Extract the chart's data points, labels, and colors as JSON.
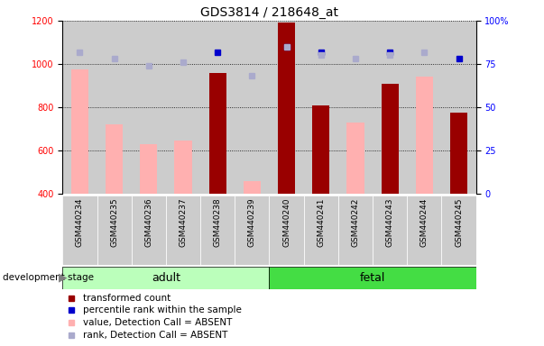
{
  "title": "GDS3814 / 218648_at",
  "samples": [
    "GSM440234",
    "GSM440235",
    "GSM440236",
    "GSM440237",
    "GSM440238",
    "GSM440239",
    "GSM440240",
    "GSM440241",
    "GSM440242",
    "GSM440243",
    "GSM440244",
    "GSM440245"
  ],
  "adult_count": 6,
  "fetal_count": 6,
  "transformed_count": [
    null,
    null,
    null,
    null,
    960,
    null,
    1190,
    810,
    null,
    910,
    null,
    775
  ],
  "percentile_rank": [
    null,
    null,
    null,
    null,
    82,
    null,
    85,
    82,
    null,
    82,
    null,
    78
  ],
  "absent_value": [
    975,
    720,
    630,
    645,
    null,
    460,
    null,
    null,
    730,
    null,
    940,
    null
  ],
  "absent_rank": [
    82,
    78,
    74,
    76,
    null,
    68,
    85,
    80,
    78,
    80,
    82,
    null
  ],
  "ylim_left": [
    400,
    1200
  ],
  "ylim_right": [
    0,
    100
  ],
  "yticks_left": [
    400,
    600,
    800,
    1000,
    1200
  ],
  "yticks_right": [
    0,
    25,
    50,
    75,
    100
  ],
  "bar_color_dark": "#990000",
  "bar_color_light": "#FFB0B0",
  "dot_color_dark": "#0000CC",
  "dot_color_light": "#AAAACC",
  "adult_bg": "#BBFFBB",
  "fetal_bg": "#44DD44",
  "sample_bg": "#CCCCCC",
  "bar_width": 0.5,
  "fig_width": 6.03,
  "fig_height": 3.84
}
